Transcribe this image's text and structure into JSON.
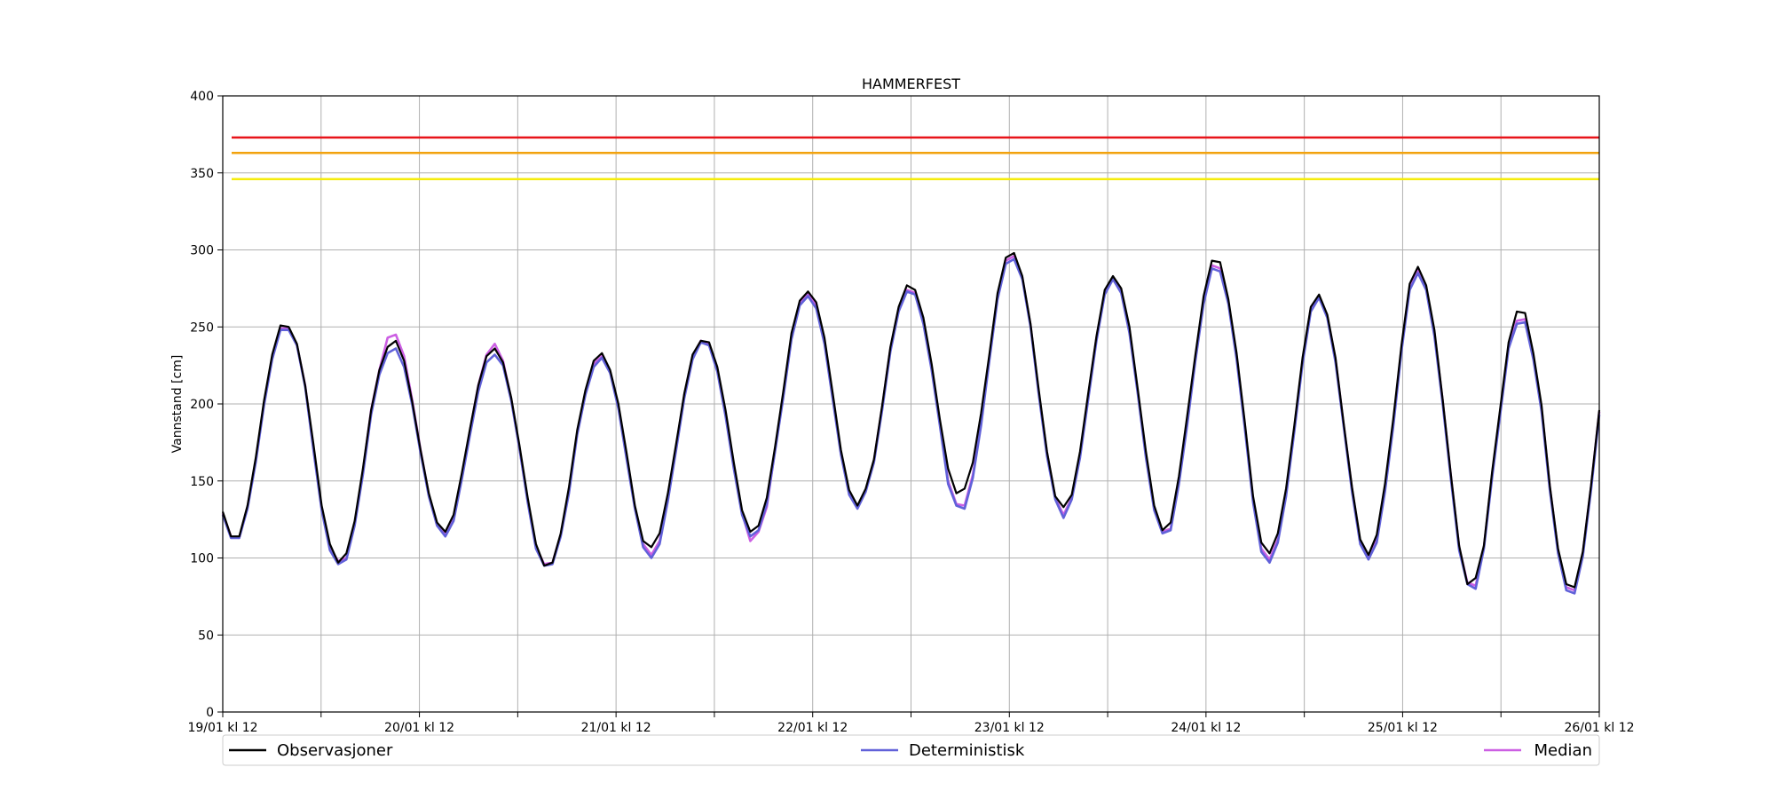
{
  "chart_data": {
    "type": "line",
    "title": "HAMMERFEST",
    "xlabel": "",
    "ylabel": "Vannstand [cm]",
    "ylim": [
      0,
      400
    ],
    "yticks": [
      0,
      50,
      100,
      150,
      200,
      250,
      300,
      350,
      400
    ],
    "xlim_hours": [
      0,
      168
    ],
    "xtick_labels": [
      "19/01 kl 12",
      "20/01 kl 12",
      "21/01 kl 12",
      "22/01 kl 12",
      "23/01 kl 12",
      "24/01 kl 12",
      "25/01 kl 12",
      "26/01 kl 12"
    ],
    "grid": true,
    "legend_position": "bottom",
    "thresholds": [
      {
        "value": 373,
        "color": "#e8141a"
      },
      {
        "value": 363,
        "color": "#f2a20d"
      },
      {
        "value": 346,
        "color": "#f5ec0a"
      }
    ],
    "series": [
      {
        "name": "Observasjoner",
        "color": "#000000",
        "values": [
          130,
          114,
          114,
          134,
          165,
          202,
          232,
          251,
          250,
          239,
          212,
          174,
          134,
          109,
          97,
          103,
          124,
          158,
          196,
          222,
          237,
          241,
          228,
          201,
          170,
          142,
          123,
          117,
          128,
          155,
          184,
          212,
          231,
          236,
          227,
          204,
          173,
          139,
          109,
          95,
          97,
          116,
          146,
          183,
          209,
          228,
          233,
          222,
          200,
          168,
          134,
          111,
          107,
          116,
          142,
          174,
          207,
          232,
          241,
          240,
          224,
          196,
          162,
          131,
          117,
          121,
          139,
          172,
          208,
          246,
          267,
          273,
          266,
          243,
          207,
          170,
          144,
          134,
          145,
          164,
          199,
          237,
          263,
          277,
          274,
          256,
          226,
          190,
          158,
          142,
          145,
          162,
          194,
          232,
          272,
          295,
          298,
          283,
          252,
          209,
          169,
          140,
          133,
          141,
          169,
          207,
          244,
          274,
          283,
          275,
          250,
          210,
          169,
          134,
          118,
          123,
          153,
          192,
          232,
          270,
          293,
          292,
          268,
          233,
          188,
          140,
          110,
          103,
          116,
          145,
          186,
          230,
          263,
          271,
          258,
          230,
          187,
          146,
          112,
          102,
          115,
          148,
          190,
          238,
          278,
          289,
          277,
          248,
          203,
          154,
          108,
          83,
          87,
          108,
          156,
          198,
          240,
          260,
          259,
          233,
          199,
          147,
          106,
          83,
          81,
          104,
          147,
          196
        ]
      },
      {
        "name": "Deterministisk",
        "color": "#6161d9",
        "values": [
          128,
          113,
          113,
          132,
          162,
          199,
          229,
          248,
          248,
          238,
          211,
          170,
          131,
          105,
          96,
          99,
          121,
          154,
          193,
          219,
          233,
          236,
          224,
          199,
          168,
          140,
          121,
          114,
          124,
          151,
          180,
          208,
          227,
          232,
          225,
          202,
          171,
          136,
          106,
          95,
          96,
          114,
          142,
          180,
          206,
          224,
          230,
          220,
          197,
          164,
          132,
          107,
          100,
          109,
          137,
          170,
          204,
          229,
          240,
          238,
          221,
          192,
          158,
          128,
          114,
          118,
          135,
          169,
          204,
          242,
          264,
          270,
          262,
          239,
          203,
          167,
          141,
          132,
          143,
          162,
          196,
          234,
          260,
          273,
          271,
          252,
          222,
          186,
          148,
          134,
          132,
          152,
          186,
          228,
          268,
          291,
          294,
          281,
          250,
          206,
          166,
          138,
          126,
          138,
          165,
          203,
          241,
          271,
          281,
          272,
          246,
          207,
          165,
          131,
          116,
          118,
          148,
          186,
          228,
          265,
          288,
          286,
          265,
          229,
          184,
          136,
          104,
          97,
          110,
          140,
          182,
          226,
          260,
          269,
          256,
          227,
          185,
          143,
          109,
          99,
          110,
          143,
          185,
          234,
          274,
          285,
          274,
          244,
          200,
          151,
          105,
          83,
          80,
          106,
          152,
          194,
          236,
          252,
          253,
          229,
          195,
          144,
          103,
          79,
          77,
          101,
          144,
          193
        ]
      },
      {
        "name": "Median",
        "color": "#cc5fe3",
        "values": [
          129,
          114,
          113,
          133,
          163,
          200,
          230,
          249,
          249,
          238,
          212,
          171,
          132,
          107,
          98,
          100,
          122,
          156,
          196,
          222,
          243,
          245,
          231,
          202,
          170,
          141,
          121,
          115,
          126,
          153,
          183,
          212,
          232,
          239,
          228,
          203,
          171,
          137,
          107,
          96,
          97,
          115,
          143,
          181,
          207,
          226,
          231,
          221,
          198,
          166,
          133,
          109,
          102,
          111,
          139,
          172,
          206,
          231,
          241,
          239,
          223,
          194,
          160,
          129,
          111,
          117,
          133,
          170,
          206,
          244,
          266,
          271,
          264,
          241,
          205,
          168,
          142,
          133,
          144,
          163,
          198,
          236,
          262,
          274,
          272,
          254,
          224,
          188,
          150,
          135,
          134,
          154,
          188,
          230,
          270,
          293,
          296,
          282,
          251,
          207,
          168,
          139,
          128,
          139,
          167,
          205,
          243,
          272,
          282,
          273,
          248,
          208,
          167,
          132,
          117,
          119,
          150,
          188,
          230,
          267,
          290,
          288,
          266,
          231,
          186,
          138,
          106,
          99,
          112,
          142,
          184,
          228,
          262,
          270,
          257,
          229,
          186,
          145,
          110,
          100,
          112,
          145,
          187,
          236,
          276,
          287,
          275,
          246,
          202,
          153,
          107,
          84,
          82,
          107,
          154,
          196,
          238,
          254,
          255,
          231,
          197,
          146,
          105,
          81,
          79,
          103,
          146,
          195
        ]
      }
    ]
  }
}
